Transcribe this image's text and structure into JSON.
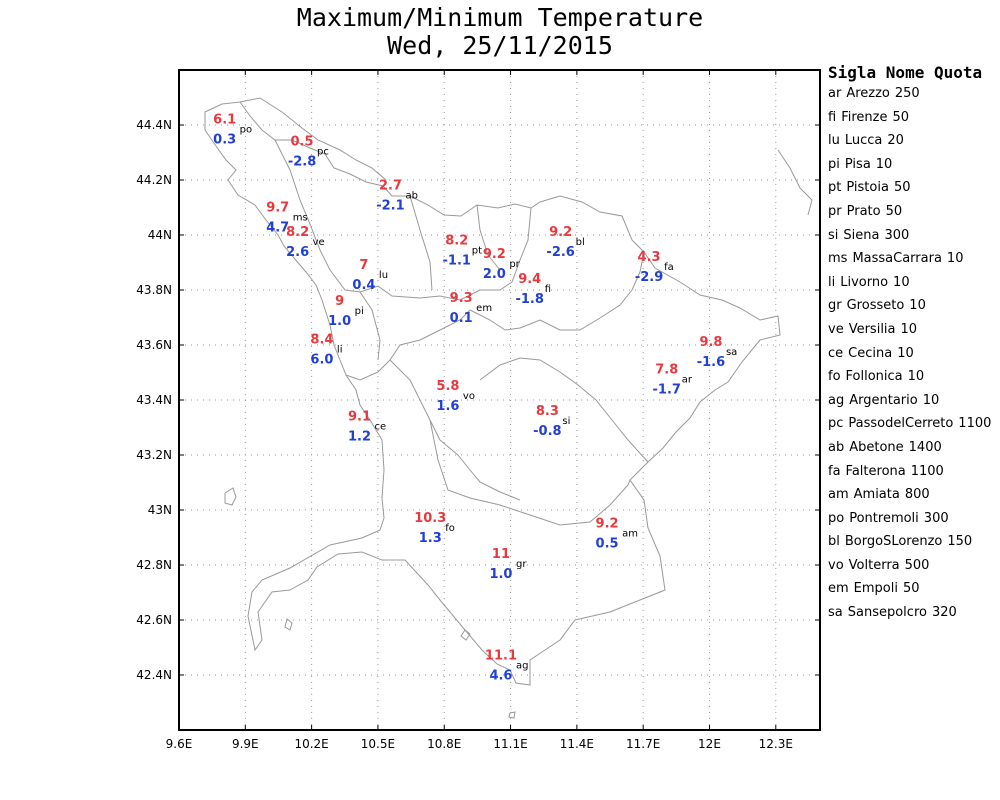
{
  "title": {
    "line1": "Maximum/Minimum Temperature",
    "line2": "Wed, 25/11/2015"
  },
  "map": {
    "lon_range": [
      9.6,
      12.5
    ],
    "lat_range": [
      42.2,
      44.6
    ],
    "x_ticks": [
      "9.6E",
      "9.9E",
      "10.2E",
      "10.5E",
      "10.8E",
      "11.1E",
      "11.4E",
      "11.7E",
      "12E",
      "12.3E"
    ],
    "x_tick_values": [
      9.6,
      9.9,
      10.2,
      10.5,
      10.8,
      11.1,
      11.4,
      11.7,
      12.0,
      12.3
    ],
    "y_ticks": [
      "42.4N",
      "42.6N",
      "42.8N",
      "43N",
      "43.2N",
      "43.4N",
      "43.6N",
      "43.8N",
      "44N",
      "44.2N",
      "44.4N"
    ],
    "y_tick_values": [
      42.4,
      42.6,
      42.8,
      43.0,
      43.2,
      43.4,
      43.6,
      43.8,
      44.0,
      44.2,
      44.4
    ],
    "grid": true,
    "colors": {
      "max": "#e8393f",
      "min": "#1f3fd6",
      "coast": "#999999",
      "grid": "#9a9a9a",
      "frame": "#000000"
    }
  },
  "stations": [
    {
      "code": "po",
      "max": "6.1",
      "min": "0.3",
      "lon": 9.87,
      "lat": 44.37
    },
    {
      "code": "pc",
      "max": "0.5",
      "min": "-2.8",
      "lon": 10.22,
      "lat": 44.29
    },
    {
      "code": "ab",
      "max": "2.7",
      "min": "-2.1",
      "lon": 10.62,
      "lat": 44.13
    },
    {
      "code": "ms",
      "max": "9.7",
      "min": "4.7",
      "lon": 10.11,
      "lat": 44.05
    },
    {
      "code": "ve",
      "max": "8.2",
      "min": "2.6",
      "lon": 10.2,
      "lat": 43.96
    },
    {
      "code": "lu",
      "max": "7",
      "min": "0.4",
      "lon": 10.5,
      "lat": 43.84
    },
    {
      "code": "pi",
      "max": "9",
      "min": "1.0",
      "lon": 10.39,
      "lat": 43.71
    },
    {
      "code": "li",
      "max": "8.4",
      "min": "6.0",
      "lon": 10.31,
      "lat": 43.57
    },
    {
      "code": "ce",
      "max": "9.1",
      "min": "1.2",
      "lon": 10.48,
      "lat": 43.29
    },
    {
      "code": "pt",
      "max": "8.2",
      "min": "-1.1",
      "lon": 10.92,
      "lat": 43.93
    },
    {
      "code": "pr",
      "max": "9.2",
      "min": "2.0",
      "lon": 11.09,
      "lat": 43.88
    },
    {
      "code": "bl",
      "max": "9.2",
      "min": "-2.6",
      "lon": 11.39,
      "lat": 43.96
    },
    {
      "code": "fi",
      "max": "9.4",
      "min": "-1.8",
      "lon": 11.25,
      "lat": 43.79
    },
    {
      "code": "em",
      "max": "9.3",
      "min": "0.1",
      "lon": 10.94,
      "lat": 43.72
    },
    {
      "code": "fa",
      "max": "4.3",
      "min": "-2.9",
      "lon": 11.79,
      "lat": 43.87
    },
    {
      "code": "vo",
      "max": "5.8",
      "min": "1.6",
      "lon": 10.88,
      "lat": 43.4
    },
    {
      "code": "si",
      "max": "8.3",
      "min": "-0.8",
      "lon": 11.33,
      "lat": 43.31
    },
    {
      "code": "sa",
      "max": "9.8",
      "min": "-1.6",
      "lon": 12.07,
      "lat": 43.56
    },
    {
      "code": "ar",
      "max": "7.8",
      "min": "-1.7",
      "lon": 11.87,
      "lat": 43.46
    },
    {
      "code": "fo",
      "max": "10.3",
      "min": "1.3",
      "lon": 10.8,
      "lat": 42.92
    },
    {
      "code": "am",
      "max": "9.2",
      "min": "0.5",
      "lon": 11.6,
      "lat": 42.9
    },
    {
      "code": "gr",
      "max": "11",
      "min": "1.0",
      "lon": 11.12,
      "lat": 42.79
    },
    {
      "code": "ag",
      "max": "11.1",
      "min": "4.6",
      "lon": 11.12,
      "lat": 42.42
    }
  ],
  "legend": {
    "header": "Sigla Nome Quota",
    "rows": [
      {
        "code": "ar",
        "name": "Arezzo",
        "quota": "250"
      },
      {
        "code": "fi",
        "name": "Firenze",
        "quota": "50"
      },
      {
        "code": "lu",
        "name": "Lucca",
        "quota": "20"
      },
      {
        "code": "pi",
        "name": "Pisa",
        "quota": "10"
      },
      {
        "code": "pt",
        "name": "Pistoia",
        "quota": "50"
      },
      {
        "code": "pr",
        "name": "Prato",
        "quota": "50"
      },
      {
        "code": "si",
        "name": "Siena",
        "quota": "300"
      },
      {
        "code": "ms",
        "name": "MassaCarrara",
        "quota": "10"
      },
      {
        "code": "li",
        "name": "Livorno",
        "quota": "10"
      },
      {
        "code": "gr",
        "name": "Grosseto",
        "quota": "10"
      },
      {
        "code": "ve",
        "name": "Versilia",
        "quota": "10"
      },
      {
        "code": "ce",
        "name": "Cecina",
        "quota": "10"
      },
      {
        "code": "fo",
        "name": "Follonica",
        "quota": "10"
      },
      {
        "code": "ag",
        "name": "Argentario",
        "quota": "10"
      },
      {
        "code": "pc",
        "name": "PassodelCerreto",
        "quota": "1100"
      },
      {
        "code": "ab",
        "name": "Abetone",
        "quota": "1400"
      },
      {
        "code": "fa",
        "name": "Falterona",
        "quota": "1100"
      },
      {
        "code": "am",
        "name": "Amiata",
        "quota": "800"
      },
      {
        "code": "po",
        "name": "Pontremoli",
        "quota": "300"
      },
      {
        "code": "bl",
        "name": "BorgoSLorenzo",
        "quota": "150"
      },
      {
        "code": "vo",
        "name": "Volterra",
        "quota": "500"
      },
      {
        "code": "em",
        "name": "Empoli",
        "quota": "50"
      },
      {
        "code": "sa",
        "name": "Sansepolcro",
        "quota": "320"
      }
    ]
  }
}
